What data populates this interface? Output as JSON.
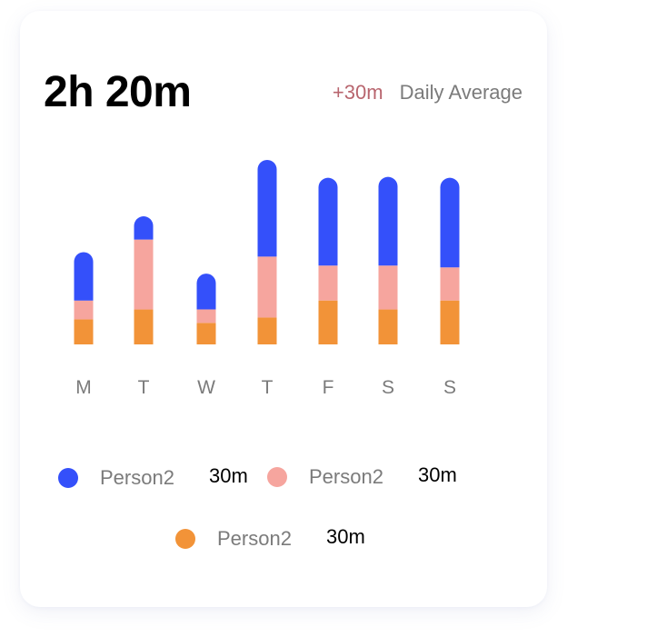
{
  "header": {
    "total": "2h 20m",
    "delta": "+30m",
    "avg_label": "Daily Average"
  },
  "colors": {
    "blue": "#3450FA",
    "pink": "#F6A59E",
    "orange": "#F29338",
    "delta": "#B8656E",
    "muted": "#7B7B7B"
  },
  "chart_data": {
    "type": "bar",
    "stacked": true,
    "categories": [
      "M",
      "T",
      "W",
      "T",
      "F",
      "S",
      "S"
    ],
    "series": [
      {
        "name": "Person2",
        "color": "#F29338",
        "values": [
          14,
          19.5,
          12,
          15,
          24.5,
          19.5,
          24.5
        ]
      },
      {
        "name": "Person2",
        "color": "#F6A59E",
        "values": [
          10.5,
          39,
          7.5,
          34,
          19.5,
          24.5,
          18.5
        ]
      },
      {
        "name": "Person2",
        "color": "#3450FA",
        "values": [
          27,
          13,
          20,
          54,
          49,
          49.5,
          50
        ]
      }
    ],
    "ylim": [
      0,
      105
    ],
    "grid": false,
    "legend": "bottom"
  },
  "legend": [
    {
      "name": "Person2",
      "value": "30m",
      "color": "#3450FA"
    },
    {
      "name": "Person2",
      "value": "30m",
      "color": "#F6A59E"
    },
    {
      "name": "Person2",
      "value": "30m",
      "color": "#F29338"
    }
  ]
}
